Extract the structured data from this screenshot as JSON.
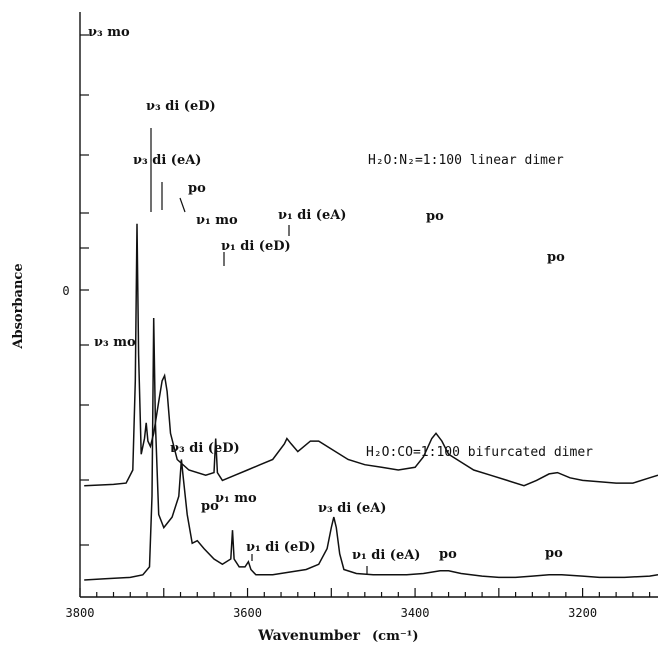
{
  "chart_data": {
    "type": "line",
    "xlabel": "Wavenumber",
    "xlabel_unit": "(cm⁻¹)",
    "ylabel": "Absorbance",
    "xlim": [
      3800,
      3110
    ],
    "x_ticks": [
      "3800",
      "3600",
      "3400",
      "3200"
    ],
    "x_tick_values": [
      3800,
      3600,
      3400,
      3200
    ],
    "y_ticks": [
      "0"
    ],
    "y_units": "relative",
    "grid": false,
    "series": [
      {
        "name": "H₂O:N₂=1:100   linear dimer",
        "offset": 0.36,
        "points": [
          [
            3795,
            0.0
          ],
          [
            3760,
            0.005
          ],
          [
            3745,
            0.01
          ],
          [
            3737,
            0.06
          ],
          [
            3734,
            0.4
          ],
          [
            3732,
            1.0
          ],
          [
            3730,
            0.5
          ],
          [
            3727,
            0.12
          ],
          [
            3723,
            0.18
          ],
          [
            3721,
            0.24
          ],
          [
            3719,
            0.17
          ],
          [
            3716,
            0.15
          ],
          [
            3712,
            0.2
          ],
          [
            3706,
            0.32
          ],
          [
            3702,
            0.4
          ],
          [
            3699,
            0.42
          ],
          [
            3696,
            0.36
          ],
          [
            3692,
            0.2
          ],
          [
            3684,
            0.1
          ],
          [
            3670,
            0.06
          ],
          [
            3650,
            0.04
          ],
          [
            3640,
            0.05
          ],
          [
            3638,
            0.18
          ],
          [
            3636,
            0.05
          ],
          [
            3630,
            0.02
          ],
          [
            3615,
            0.04
          ],
          [
            3600,
            0.06
          ],
          [
            3585,
            0.08
          ],
          [
            3570,
            0.1
          ],
          [
            3556,
            0.16
          ],
          [
            3553,
            0.18
          ],
          [
            3548,
            0.16
          ],
          [
            3540,
            0.13
          ],
          [
            3525,
            0.17
          ],
          [
            3515,
            0.17
          ],
          [
            3500,
            0.14
          ],
          [
            3480,
            0.1
          ],
          [
            3460,
            0.08
          ],
          [
            3440,
            0.07
          ],
          [
            3420,
            0.06
          ],
          [
            3400,
            0.07
          ],
          [
            3390,
            0.11
          ],
          [
            3380,
            0.18
          ],
          [
            3375,
            0.2
          ],
          [
            3368,
            0.17
          ],
          [
            3360,
            0.12
          ],
          [
            3345,
            0.09
          ],
          [
            3330,
            0.06
          ],
          [
            3310,
            0.04
          ],
          [
            3290,
            0.02
          ],
          [
            3270,
            0.0
          ],
          [
            3255,
            0.02
          ],
          [
            3240,
            0.045
          ],
          [
            3230,
            0.05
          ],
          [
            3215,
            0.03
          ],
          [
            3200,
            0.02
          ],
          [
            3180,
            0.015
          ],
          [
            3160,
            0.01
          ],
          [
            3140,
            0.01
          ],
          [
            3120,
            0.03
          ],
          [
            3110,
            0.04
          ]
        ]
      },
      {
        "name": "H₂O:CO=1:100   bifurcated dimer",
        "offset": 0.0,
        "points": [
          [
            3795,
            0.0
          ],
          [
            3770,
            0.005
          ],
          [
            3740,
            0.01
          ],
          [
            3725,
            0.02
          ],
          [
            3717,
            0.05
          ],
          [
            3714,
            0.32
          ],
          [
            3712,
            1.0
          ],
          [
            3710,
            0.6
          ],
          [
            3706,
            0.25
          ],
          [
            3700,
            0.2
          ],
          [
            3690,
            0.24
          ],
          [
            3682,
            0.32
          ],
          [
            3679,
            0.46
          ],
          [
            3677,
            0.4
          ],
          [
            3672,
            0.25
          ],
          [
            3666,
            0.14
          ],
          [
            3660,
            0.15
          ],
          [
            3652,
            0.12
          ],
          [
            3640,
            0.08
          ],
          [
            3630,
            0.06
          ],
          [
            3620,
            0.08
          ],
          [
            3618,
            0.19
          ],
          [
            3616,
            0.08
          ],
          [
            3610,
            0.05
          ],
          [
            3603,
            0.05
          ],
          [
            3599,
            0.07
          ],
          [
            3596,
            0.04
          ],
          [
            3590,
            0.02
          ],
          [
            3570,
            0.02
          ],
          [
            3550,
            0.03
          ],
          [
            3530,
            0.04
          ],
          [
            3515,
            0.06
          ],
          [
            3505,
            0.12
          ],
          [
            3500,
            0.2
          ],
          [
            3497,
            0.24
          ],
          [
            3494,
            0.2
          ],
          [
            3490,
            0.1
          ],
          [
            3485,
            0.04
          ],
          [
            3470,
            0.025
          ],
          [
            3450,
            0.02
          ],
          [
            3430,
            0.02
          ],
          [
            3410,
            0.02
          ],
          [
            3390,
            0.025
          ],
          [
            3370,
            0.035
          ],
          [
            3360,
            0.035
          ],
          [
            3345,
            0.025
          ],
          [
            3320,
            0.015
          ],
          [
            3300,
            0.01
          ],
          [
            3280,
            0.01
          ],
          [
            3260,
            0.015
          ],
          [
            3240,
            0.02
          ],
          [
            3225,
            0.02
          ],
          [
            3200,
            0.015
          ],
          [
            3180,
            0.01
          ],
          [
            3150,
            0.01
          ],
          [
            3120,
            0.015
          ],
          [
            3110,
            0.02
          ]
        ]
      }
    ],
    "annotations_top": [
      {
        "text": "ν₃ mo"
      },
      {
        "text": "ν₃ di (eD)"
      },
      {
        "text": "ν₃ di (eA)"
      },
      {
        "text": "po"
      },
      {
        "text": "ν₁ mo"
      },
      {
        "text": "ν₁ di (eD)"
      },
      {
        "text": "ν₁ di (eA)"
      },
      {
        "text": "po"
      },
      {
        "text": "po"
      },
      {
        "text": "H₂O:N₂=1:100   linear dimer"
      }
    ],
    "annotations_bottom": [
      {
        "text": "ν₃ mo"
      },
      {
        "text": "ν₃ di (eD)"
      },
      {
        "text": "po"
      },
      {
        "text": "ν₁ mo"
      },
      {
        "text": "ν₁ di (eD)"
      },
      {
        "text": "ν₃ di (eA)"
      },
      {
        "text": "ν₁ di (eA)"
      },
      {
        "text": "po"
      },
      {
        "text": "po"
      },
      {
        "text": "H₂O:CO=1:100   bifurcated dimer"
      }
    ]
  }
}
